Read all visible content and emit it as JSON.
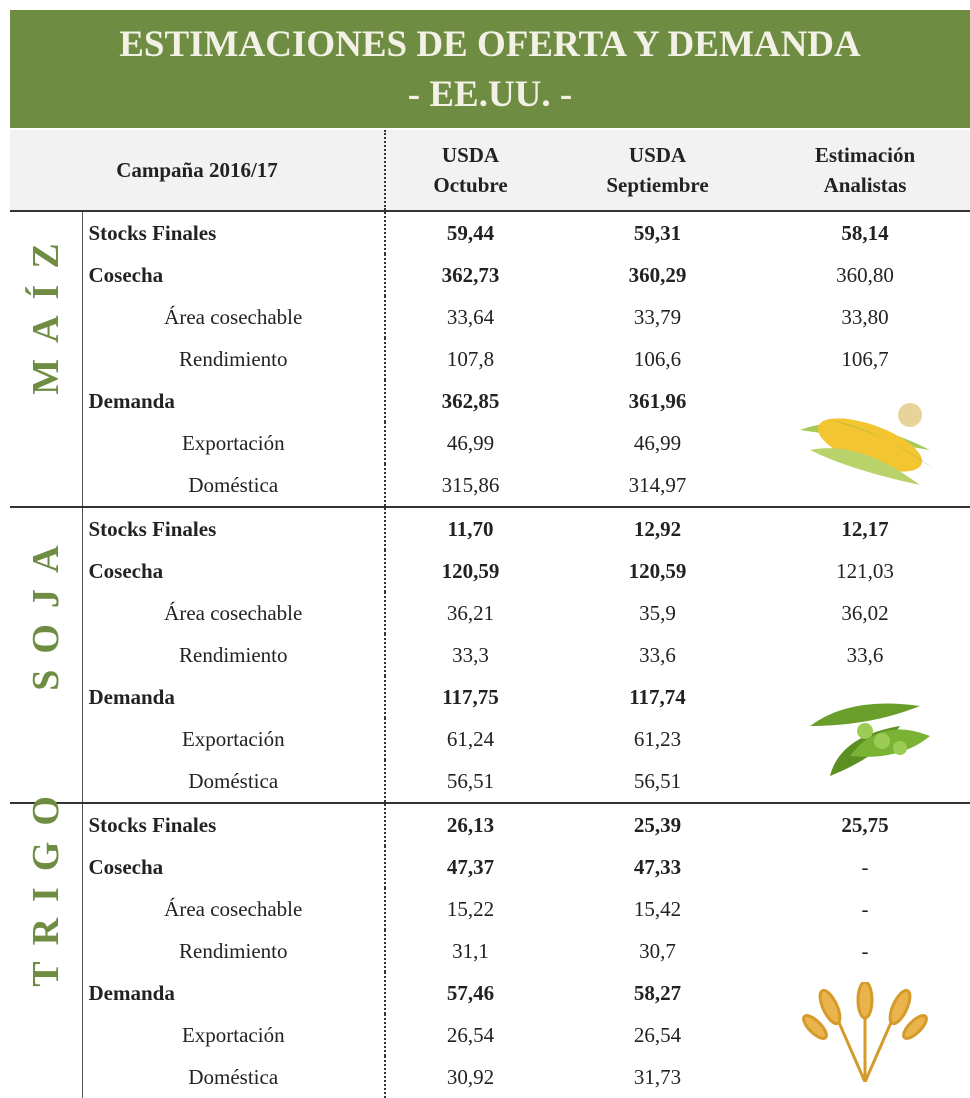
{
  "header": {
    "title_line1": "ESTIMACIONES DE OFERTA Y DEMANDA",
    "title_line2": "- EE.UU. -"
  },
  "table": {
    "columns": {
      "campaign": "Campaña 2016/17",
      "usda_oct": [
        "USDA",
        "Octubre"
      ],
      "usda_sep": [
        "USDA",
        "Septiembre"
      ],
      "analysts": [
        "Estimación",
        "Analistas"
      ]
    },
    "sections": [
      {
        "crop": "MAÍZ",
        "rows": [
          {
            "label": "Stocks Finales",
            "values": [
              "59,44",
              "59,31",
              "58,14"
            ]
          },
          {
            "label": "Cosecha",
            "values": [
              "362,73",
              "360,29",
              "360,80"
            ]
          },
          {
            "label": "Área cosechable",
            "values": [
              "33,64",
              "33,79",
              "33,80"
            ]
          },
          {
            "label": "Rendimiento",
            "values": [
              "107,8",
              "106,6",
              "106,7"
            ]
          },
          {
            "label": "Demanda",
            "values": [
              "362,85",
              "361,96"
            ]
          },
          {
            "label": "Exportación",
            "values": [
              "46,99",
              "46,99"
            ]
          },
          {
            "label": "Doméstica",
            "values": [
              "315,86",
              "314,97"
            ]
          }
        ]
      },
      {
        "crop": "SOJA",
        "rows": [
          {
            "label": "Stocks Finales",
            "values": [
              "11,70",
              "12,92",
              "12,17"
            ]
          },
          {
            "label": "Cosecha",
            "values": [
              "120,59",
              "120,59",
              "121,03"
            ]
          },
          {
            "label": "Área cosechable",
            "values": [
              "36,21",
              "35,9",
              "36,02"
            ]
          },
          {
            "label": "Rendimiento",
            "values": [
              "33,3",
              "33,6",
              "33,6"
            ]
          },
          {
            "label": "Demanda",
            "values": [
              "117,75",
              "117,74"
            ]
          },
          {
            "label": "Exportación",
            "values": [
              "61,24",
              "61,23"
            ]
          },
          {
            "label": "Doméstica",
            "values": [
              "56,51",
              "56,51"
            ]
          }
        ]
      },
      {
        "crop": "TRIGO",
        "rows": [
          {
            "label": "Stocks Finales",
            "values": [
              "26,13",
              "25,39",
              "25,75"
            ]
          },
          {
            "label": "Cosecha",
            "values": [
              "47,37",
              "47,33",
              "-"
            ]
          },
          {
            "label": "Área cosechable",
            "values": [
              "15,22",
              "15,42",
              "-"
            ]
          },
          {
            "label": "Rendimiento",
            "values": [
              "31,1",
              "30,7",
              "-"
            ]
          },
          {
            "label": "Demanda",
            "values": [
              "57,46",
              "58,27"
            ]
          },
          {
            "label": "Exportación",
            "values": [
              "26,54",
              "26,54"
            ]
          },
          {
            "label": "Doméstica",
            "values": [
              "30,92",
              "31,73"
            ]
          }
        ]
      }
    ]
  }
}
